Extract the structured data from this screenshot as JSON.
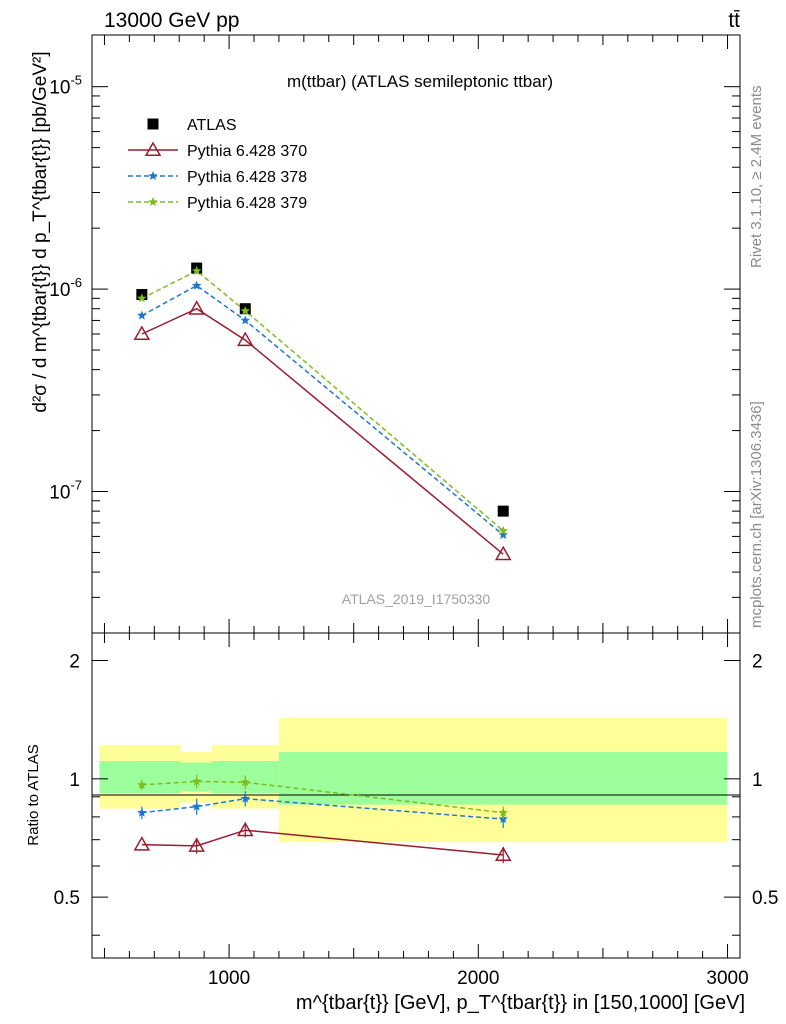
{
  "header": {
    "left": "13000 GeV pp",
    "right": "tt̄"
  },
  "side_labels": {
    "rivet": "Rivet 3.1.10, ≥ 2.4M events",
    "mcplots": "mcplots.cern.ch [arXiv:1306.3436]"
  },
  "chart_data": [
    {
      "type": "scatter",
      "panel": "main",
      "title": "m(ttbar) (ATLAS semileptonic ttbar)",
      "watermark": "ATLAS_2019_I1750330",
      "ylabel": "d²σ / d m^{tbar{t}} d p_T^{tbar{t}} [pb/GeV²]",
      "yscale": "log",
      "ylim": [
        2e-08,
        1.8e-05
      ],
      "xlim": [
        450,
        3050
      ],
      "ytick_labels": [
        "10^-5",
        "10^-6",
        "10^-7"
      ],
      "legend_position": "top-left",
      "series": [
        {
          "name": "ATLAS",
          "x": [
            650,
            870,
            1065,
            2100
          ],
          "y": [
            9.4e-07,
            1.27e-06,
            8e-07,
            8e-08
          ],
          "color": "#000000",
          "style": "square marker"
        },
        {
          "name": "Pythia 6.428 370",
          "x": [
            650,
            870,
            1065,
            2100
          ],
          "y": [
            6e-07,
            8e-07,
            5.6e-07,
            4.9e-08
          ],
          "color": "#9b1b2e",
          "style": "solid line, open triangle"
        },
        {
          "name": "Pythia 6.428 378",
          "x": [
            650,
            870,
            1065,
            2100
          ],
          "y": [
            7.4e-07,
            1.04e-06,
            7e-07,
            6.1e-08
          ],
          "color": "#1f78d0",
          "style": "dashed line, star"
        },
        {
          "name": "Pythia 6.428 379",
          "x": [
            650,
            870,
            1065,
            2100
          ],
          "y": [
            9e-07,
            1.23e-06,
            7.8e-07,
            6.4e-08
          ],
          "color": "#7dbd1e",
          "style": "dashed line, star"
        }
      ]
    },
    {
      "type": "scatter",
      "panel": "ratio",
      "ylabel": "Ratio to ATLAS",
      "xlabel": "m^{tbar{t}} [GeV], p_T^{tbar{t}} in [150,1000] [GeV]",
      "xlim": [
        450,
        3050
      ],
      "ylim": [
        0.35,
        2.35
      ],
      "xtick_labels": [
        "1000",
        "2000",
        "3000"
      ],
      "ytick_labels": [
        "2",
        "1",
        "0.5"
      ],
      "bands": [
        {
          "x_low": 480,
          "x_high": 805,
          "inner": [
            0.92,
            1.11
          ],
          "outer": [
            0.84,
            1.22
          ]
        },
        {
          "x_low": 805,
          "x_high": 930,
          "inner": [
            0.93,
            1.1
          ],
          "outer": [
            0.87,
            1.17
          ]
        },
        {
          "x_low": 930,
          "x_high": 1200,
          "inner": [
            0.92,
            1.11
          ],
          "outer": [
            0.84,
            1.22
          ]
        },
        {
          "x_low": 1200,
          "x_high": 3000,
          "inner": [
            0.86,
            1.17
          ],
          "outer": [
            0.69,
            1.43
          ]
        }
      ],
      "series": [
        {
          "name": "Pythia 6.428 370",
          "x": [
            650,
            870,
            1065,
            2100
          ],
          "y": [
            0.68,
            0.675,
            0.74,
            0.64
          ],
          "err": [
            0.0,
            0.03,
            0.03,
            0.03
          ],
          "color": "#9b1b2e"
        },
        {
          "name": "Pythia 6.428 378",
          "x": [
            650,
            870,
            1065,
            2100
          ],
          "y": [
            0.82,
            0.85,
            0.89,
            0.79
          ],
          "err": [
            0.03,
            0.04,
            0.04,
            0.04
          ],
          "color": "#1f78d0"
        },
        {
          "name": "Pythia 6.428 379",
          "x": [
            650,
            870,
            1065,
            2100
          ],
          "y": [
            0.965,
            0.985,
            0.98,
            0.82
          ],
          "err": [
            0.03,
            0.04,
            0.04,
            0.03
          ],
          "color": "#7dbd1e"
        }
      ]
    }
  ]
}
